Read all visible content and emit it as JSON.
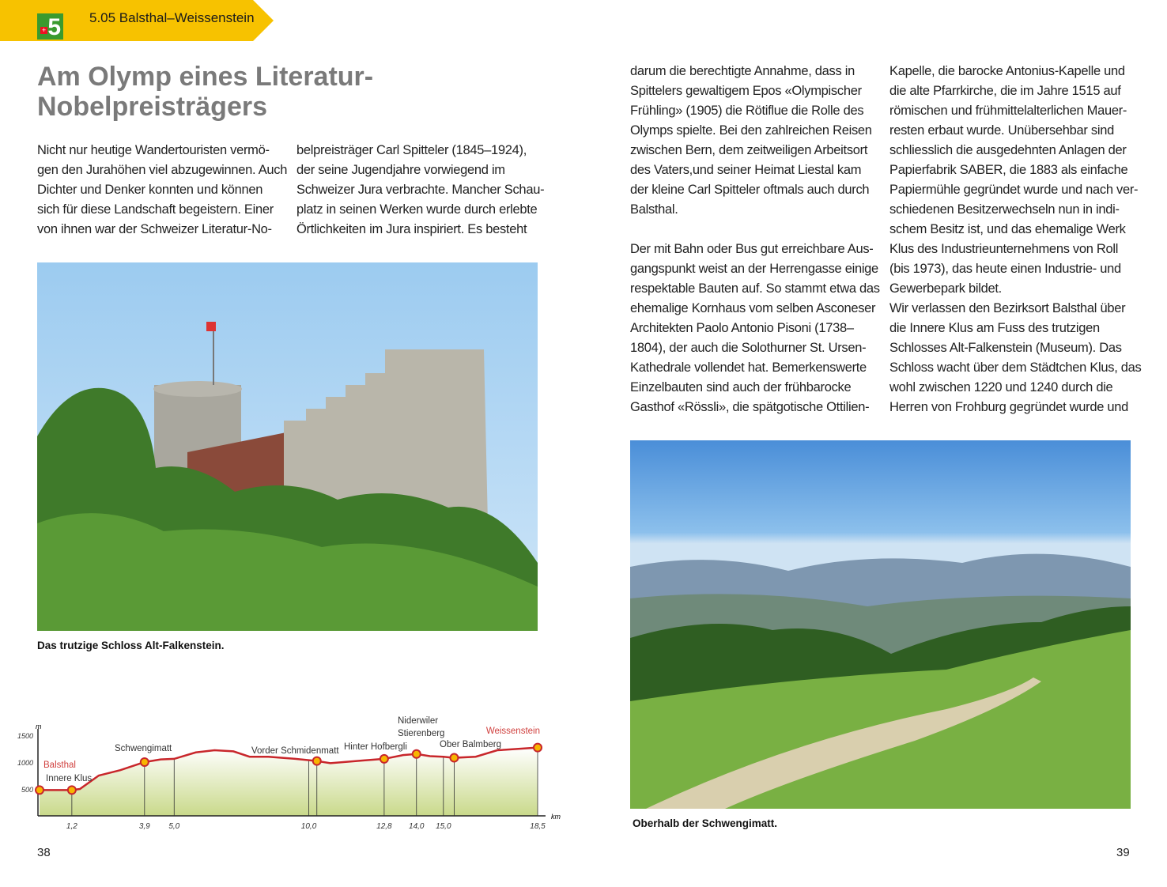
{
  "header": {
    "route_title": "5.05  Balsthal–Weissenstein",
    "logo_number": "5",
    "banner_color": "#f7c200",
    "logo_color": "#3a9a2e"
  },
  "article": {
    "title_lines": [
      "Am Olymp eines Literatur-",
      "Nobelpreisträgers"
    ],
    "col1": [
      "Nicht nur heutige Wandertouristen vermö-",
      "gen den Jurahöhen viel abzugewinnen. Auch",
      "Dichter und Denker konnten und können",
      "sich für diese Landschaft begeistern. Einer",
      "von ihnen war der Schweizer Literatur-No-"
    ],
    "col2": [
      "belpreisträger Carl Spitteler (1845–1924),",
      "der seine Jugendjahre vorwiegend im",
      "Schweizer Jura verbrachte. Mancher Schau-",
      "platz in seinen Werken wurde durch erlebte",
      "Örtlichkeiten im Jura inspiriert. Es besteht"
    ],
    "col3": [
      "darum die berechtigte Annahme, dass in",
      "Spittelers gewaltigem Epos «Olympischer",
      "Frühling» (1905) die Rötiflue die Rolle des",
      "Olymps spielte. Bei den zahlreichen Reisen",
      "zwischen Bern, dem zeitweiligen Arbeitsort",
      "des Vaters,und seiner Heimat Liestal kam",
      "der kleine Carl Spitteler oftmals auch durch",
      "Balsthal.",
      "",
      "Der mit Bahn oder Bus gut erreichbare Aus-",
      "gangspunkt weist an der Herrengasse einige",
      "respektable Bauten auf. So stammt etwa das",
      "ehemalige Kornhaus vom selben Asconeser",
      "Architekten Paolo Antonio Pisoni (1738–",
      "1804), der auch die Solothurner St. Ursen-",
      "Kathedrale vollendet hat. Bemerkenswerte",
      "Einzelbauten sind auch der frühbarocke",
      "Gasthof «Rössli», die spätgotische Ottilien-"
    ],
    "col4": [
      "Kapelle, die barocke Antonius-Kapelle und",
      "die alte Pfarrkirche, die im Jahre 1515 auf",
      "römischen und frühmittelalterlichen Mauer-",
      "resten erbaut wurde. Unübersehbar sind",
      "schliesslich die ausgedehnten Anlagen der",
      "Papierfabrik SABER, die 1883 als einfache",
      "Papiermühle gegründet wurde und nach ver-",
      "schiedenen Besitzerwechseln nun in indi-",
      "schem Besitz ist, und das ehemalige Werk",
      "Klus des Industrieunternehmens von Roll",
      "(bis 1973), das heute einen Industrie- und",
      "Gewerbepark bildet.",
      "Wir verlassen den Bezirksort Balsthal über",
      "die Innere Klus am Fuss des trutzigen",
      "Schlosses Alt-Falkenstein (Museum). Das",
      "Schloss wacht über dem Städtchen Klus, das",
      "wohl zwischen 1220 und 1240 durch die",
      "Herren von Frohburg gegründet wurde und"
    ]
  },
  "photos": {
    "castle_caption": "Das trutzige Schloss Alt-Falkenstein.",
    "meadow_caption": "Oberhalb der Schwengimatt."
  },
  "page_numbers": {
    "left": "38",
    "right": "39"
  },
  "chart_data": {
    "type": "area",
    "xlabel": "km",
    "ylabel": "m",
    "ylim": [
      0,
      1500
    ],
    "xlim": [
      0,
      18.5
    ],
    "y_ticks": [
      "1500",
      "1000",
      "500"
    ],
    "x_tick_labels": [
      "1,2",
      "3,9",
      "5,0",
      "10,0",
      "12,8",
      "14,0",
      "15,0",
      "18,5"
    ],
    "x_tick_values": [
      1.2,
      3.9,
      5.0,
      10.0,
      12.8,
      14.0,
      15.0,
      18.5
    ],
    "profile": [
      [
        0,
        480
      ],
      [
        1.2,
        480
      ],
      [
        1.5,
        500
      ],
      [
        2.2,
        750
      ],
      [
        3.0,
        850
      ],
      [
        3.9,
        1000
      ],
      [
        4.5,
        1050
      ],
      [
        5.0,
        1060
      ],
      [
        5.8,
        1180
      ],
      [
        6.5,
        1220
      ],
      [
        7.2,
        1200
      ],
      [
        7.8,
        1100
      ],
      [
        8.5,
        1100
      ],
      [
        9.5,
        1060
      ],
      [
        10.3,
        1020
      ],
      [
        10.8,
        980
      ],
      [
        12.0,
        1030
      ],
      [
        12.8,
        1060
      ],
      [
        13.5,
        1130
      ],
      [
        14.0,
        1150
      ],
      [
        14.5,
        1110
      ],
      [
        15.0,
        1100
      ],
      [
        15.4,
        1080
      ],
      [
        16.2,
        1100
      ],
      [
        17.0,
        1220
      ],
      [
        18.5,
        1270
      ]
    ],
    "stations": [
      {
        "name": "Balsthal",
        "km": 0,
        "m": 480,
        "highlight": true
      },
      {
        "name": "Innere Klus",
        "km": 1.2,
        "m": 480
      },
      {
        "name": "Schwengimatt",
        "km": 3.9,
        "m": 1000
      },
      {
        "name": "Vorder Schmidenmatt",
        "km": 10.3,
        "m": 1020
      },
      {
        "name": "Hinter Hofbergli",
        "km": 12.8,
        "m": 1060
      },
      {
        "name": "Niderwiler Stierenberg",
        "km": 14.0,
        "m": 1150
      },
      {
        "name": "Ober Balmberg",
        "km": 15.4,
        "m": 1080
      },
      {
        "name": "Weissenstein",
        "km": 18.5,
        "m": 1270,
        "highlight": true
      }
    ],
    "colors": {
      "line": "#c8262b",
      "fill_top": "#ffffff",
      "fill_bottom": "#c9d98a",
      "dot": "#f7b500",
      "highlight_text": "#d0413f"
    }
  }
}
